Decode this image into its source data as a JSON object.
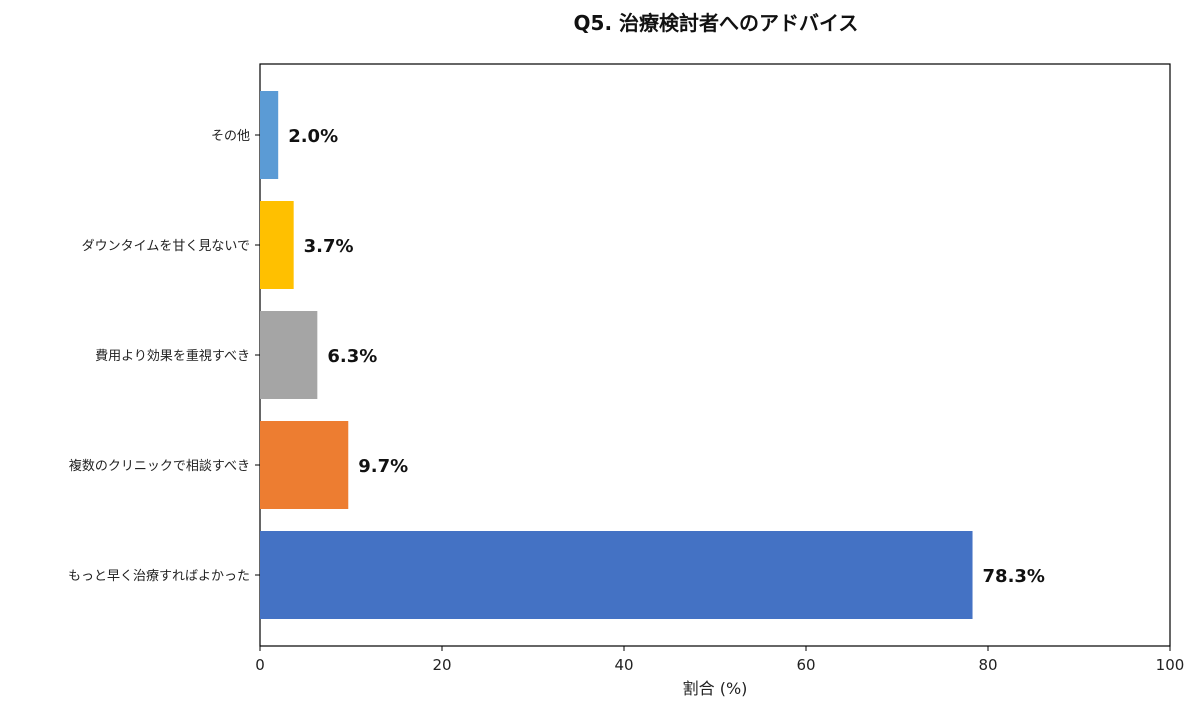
{
  "chart_data": {
    "type": "bar",
    "orientation": "horizontal",
    "title": "Q5. 治療検討者へのアドバイス",
    "xlabel": "割合 (%)",
    "ylabel": "",
    "xlim": [
      0,
      100
    ],
    "xticks": [
      "0",
      "20",
      "40",
      "60",
      "80",
      "100"
    ],
    "grid": false,
    "categories": [
      "その他",
      "ダウンタイムを甘く見ないで",
      "費用より効果を重視すべき",
      "複数のクリニックで相談すべき",
      "もっと早く治療すればよかった"
    ],
    "values": [
      2.0,
      3.7,
      6.3,
      9.7,
      78.3
    ],
    "data_labels": [
      "2.0%",
      "3.7%",
      "6.3%",
      "9.7%",
      "78.3%"
    ],
    "colors": [
      "#5b9bd5",
      "#ffc000",
      "#a5a5a5",
      "#ed7d31",
      "#4472c4"
    ]
  }
}
